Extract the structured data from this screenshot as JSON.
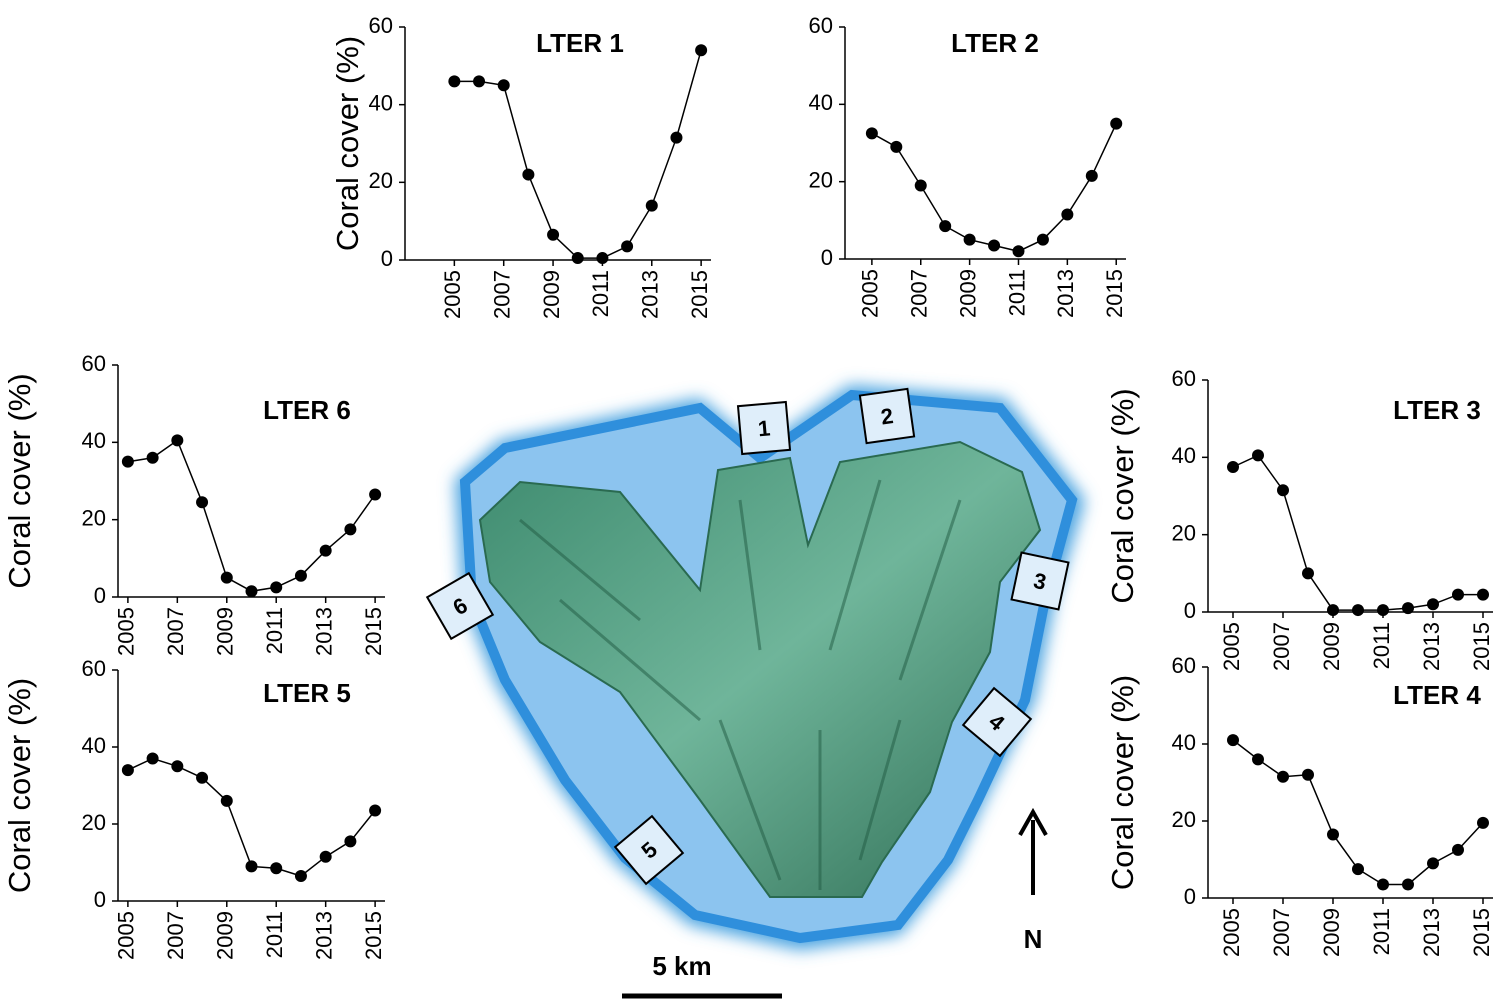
{
  "chart_data": [
    {
      "type": "line",
      "title": "LTER 1",
      "ylabel": "Coral cover (%)",
      "color": "#000000",
      "x": [
        2005,
        2006,
        2007,
        2008,
        2009,
        2010,
        2011,
        2012,
        2013,
        2014,
        2015
      ],
      "values": [
        46,
        46,
        45,
        22,
        6.5,
        0.5,
        0.5,
        3.5,
        14,
        31.5,
        54
      ],
      "xlim": [
        2003,
        2015.4
      ],
      "xticks": [
        2005,
        2007,
        2009,
        2011,
        2013,
        2015
      ],
      "ylim": [
        0,
        60
      ],
      "yticks": [
        0,
        20,
        40,
        60
      ]
    },
    {
      "type": "line",
      "title": "LTER 2",
      "color": "#000000",
      "x": [
        2005,
        2006,
        2007,
        2008,
        2009,
        2010,
        2011,
        2012,
        2013,
        2014,
        2015
      ],
      "values": [
        32.5,
        29,
        19,
        8.5,
        5,
        3.5,
        2,
        5,
        11.5,
        21.5,
        35
      ],
      "xlim": [
        2003.9,
        2015.4
      ],
      "xticks": [
        2005,
        2007,
        2009,
        2011,
        2013,
        2015
      ],
      "ylim": [
        0,
        60
      ],
      "yticks": [
        0,
        20,
        40,
        60
      ]
    },
    {
      "type": "line",
      "title": "LTER 6",
      "ylabel": "Coral cover (%)",
      "color": "#000000",
      "x": [
        2005,
        2006,
        2007,
        2008,
        2009,
        2010,
        2011,
        2012,
        2013,
        2014,
        2015
      ],
      "values": [
        35,
        36,
        40.5,
        24.5,
        5,
        1.5,
        2.5,
        5.5,
        12,
        17.5,
        26.5
      ],
      "xlim": [
        2004.6,
        2015.4
      ],
      "xticks": [
        2005,
        2007,
        2009,
        2011,
        2013,
        2015
      ],
      "ylim": [
        0,
        60
      ],
      "yticks": [
        0,
        20,
        40,
        60
      ]
    },
    {
      "type": "line",
      "title": "LTER 5",
      "ylabel": "Coral cover (%)",
      "color": "#000000",
      "x": [
        2005,
        2006,
        2007,
        2008,
        2009,
        2010,
        2011,
        2012,
        2013,
        2014,
        2015
      ],
      "values": [
        34,
        37,
        35,
        32,
        26,
        9,
        8.5,
        6.5,
        11.5,
        15.5,
        23.5
      ],
      "xlim": [
        2004.6,
        2015.4
      ],
      "xticks": [
        2005,
        2007,
        2009,
        2011,
        2013,
        2015
      ],
      "ylim": [
        0,
        60
      ],
      "yticks": [
        0,
        20,
        40,
        60
      ]
    },
    {
      "type": "line",
      "title": "LTER 3",
      "ylabel": "Coral cover (%)",
      "color": "#000000",
      "x": [
        2005,
        2006,
        2007,
        2008,
        2009,
        2010,
        2011,
        2012,
        2013,
        2014,
        2015
      ],
      "values": [
        37.5,
        40.5,
        31.5,
        10,
        0.5,
        0.5,
        0.5,
        1,
        2,
        4.5,
        4.5
      ],
      "xlim": [
        2004,
        2015.4
      ],
      "xticks": [
        2005,
        2007,
        2009,
        2011,
        2013,
        2015
      ],
      "ylim": [
        0,
        60
      ],
      "yticks": [
        0,
        20,
        40,
        60
      ]
    },
    {
      "type": "line",
      "title": "LTER 4",
      "ylabel": "Coral cover (%)",
      "color": "#000000",
      "x": [
        2005,
        2006,
        2007,
        2008,
        2009,
        2010,
        2011,
        2012,
        2013,
        2014,
        2015
      ],
      "values": [
        41,
        36,
        31.5,
        32,
        16.5,
        7.5,
        3.5,
        3.5,
        9,
        12.5,
        19.5
      ],
      "xlim": [
        2004,
        2015.4
      ],
      "xticks": [
        2005,
        2007,
        2009,
        2011,
        2013,
        2015
      ],
      "ylim": [
        0,
        60
      ],
      "yticks": [
        0,
        20,
        40,
        60
      ]
    }
  ],
  "map": {
    "sites": [
      "1",
      "2",
      "3",
      "4",
      "5",
      "6"
    ],
    "scale_label": "5 km",
    "north_label": "N"
  }
}
